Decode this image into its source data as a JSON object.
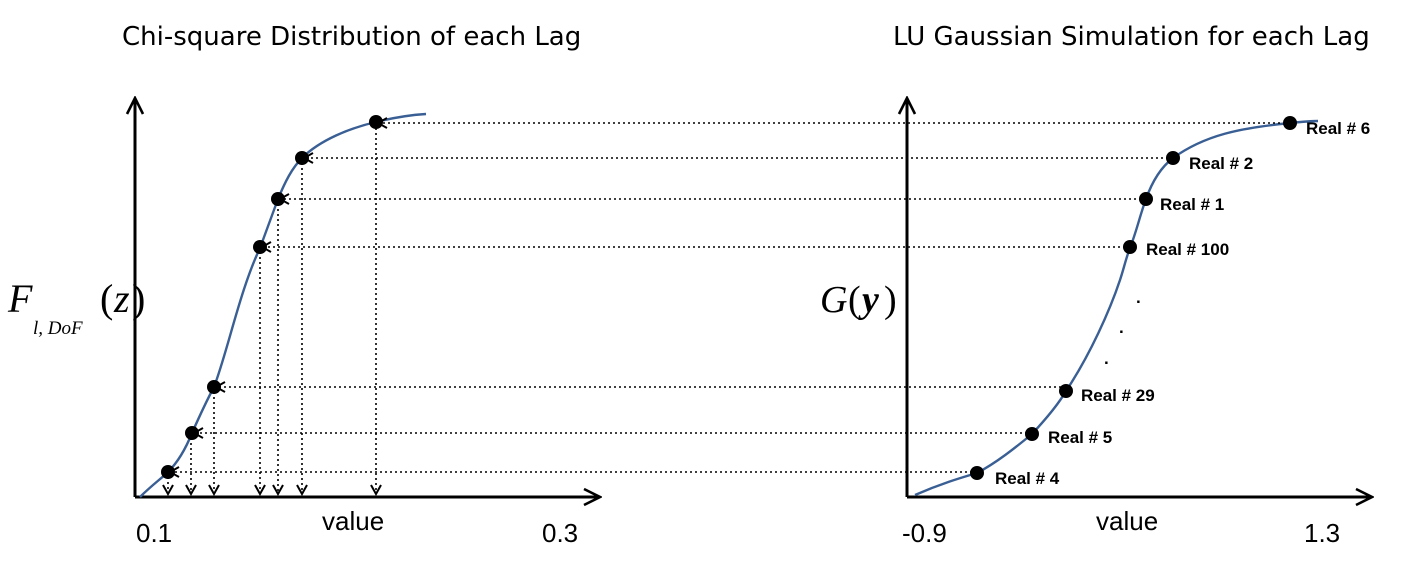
{
  "left_panel": {
    "title": "Chi-square Distribution of each Lag",
    "ylabel": {
      "main": "F",
      "sub": "l, DoF",
      "arg": "z"
    },
    "xlabel": "value",
    "xtick_min": "0.1",
    "xtick_max": "0.3"
  },
  "right_panel": {
    "title": "LU Gaussian Simulation for each Lag",
    "ylabel": {
      "main": "G",
      "arg": "y"
    },
    "xlabel": "value",
    "xtick_min": "-0.9",
    "xtick_max": "1.3",
    "ellipsis": ".",
    "realizations": [
      {
        "label": "Real # 6"
      },
      {
        "label": "Real # 2"
      },
      {
        "label": "Real # 1"
      },
      {
        "label": "Real # 100"
      },
      {
        "label": "Real # 29"
      },
      {
        "label": "Real # 5"
      },
      {
        "label": "Real # 4"
      }
    ]
  },
  "colors": {
    "curve": "#3a5f94",
    "points": "#000000"
  }
}
